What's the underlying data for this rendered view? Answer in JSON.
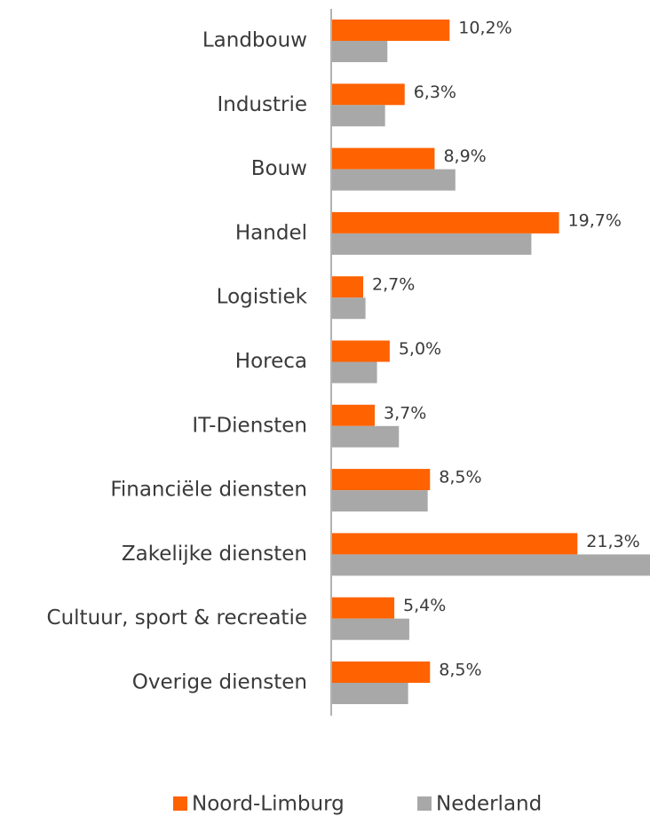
{
  "chart_data": {
    "type": "barh",
    "categories": [
      "Landbouw",
      "Industrie",
      "Bouw",
      "Handel",
      "Logistiek",
      "Horeca",
      "IT-Diensten",
      "Financiële diensten",
      "Zakelijke diensten",
      "Cultuur, sport & recreatie",
      "Overige diensten"
    ],
    "series": [
      {
        "name": "Noord-Limburg",
        "color": "#ff6200",
        "values": [
          10.2,
          6.3,
          8.9,
          19.7,
          2.7,
          5.0,
          3.7,
          8.5,
          21.3,
          5.4,
          8.5
        ],
        "value_labels": [
          "10,2%",
          "6,3%",
          "8,9%",
          "19,7%",
          "2,7%",
          "5,0%",
          "3,7%",
          "8,5%",
          "21,3%",
          "5,4%",
          "8,5%"
        ]
      },
      {
        "name": "Nederland",
        "color": "#a8a8a8",
        "values": [
          4.8,
          4.6,
          10.7,
          17.3,
          2.9,
          3.9,
          5.8,
          8.3,
          27.6,
          6.7,
          6.6
        ]
      }
    ],
    "xlim": [
      0,
      27.6
    ],
    "legend": "bottom"
  }
}
